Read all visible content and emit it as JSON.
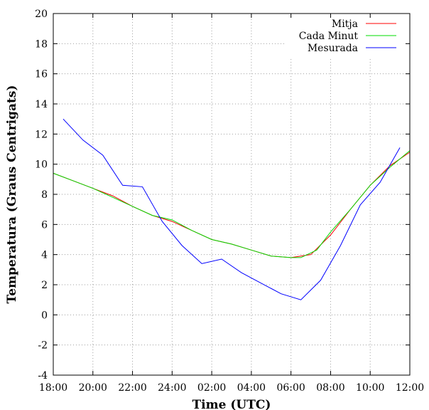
{
  "chart_data": {
    "type": "line",
    "xlabel": "Time (UTC)",
    "ylabel": "Temperatura (Graus Centrigats)",
    "ylim": [
      -4,
      20
    ],
    "yticks": [
      "-4",
      "-2",
      "0",
      "2",
      "4",
      "6",
      "8",
      "10",
      "12",
      "14",
      "16",
      "18",
      "20"
    ],
    "xlim": [
      0,
      18
    ],
    "xticks": [
      {
        "label": "18:00",
        "x": 0
      },
      {
        "label": "20:00",
        "x": 2
      },
      {
        "label": "22:00",
        "x": 4
      },
      {
        "label": "24:00",
        "x": 6
      },
      {
        "label": "02:00",
        "x": 8
      },
      {
        "label": "04:00",
        "x": 10
      },
      {
        "label": "06:00",
        "x": 12
      },
      {
        "label": "08:00",
        "x": 14
      },
      {
        "label": "10:00",
        "x": 16
      },
      {
        "label": "12:00",
        "x": 18
      }
    ],
    "grid": true,
    "legend_position": "top-right",
    "series": [
      {
        "name": "Mitja",
        "color": "#ff0000",
        "points": [
          [
            0,
            9.4
          ],
          [
            1,
            8.9
          ],
          [
            2,
            8.4
          ],
          [
            3,
            7.9
          ],
          [
            4,
            7.2
          ],
          [
            5,
            6.6
          ],
          [
            6,
            6.2
          ],
          [
            7,
            5.6
          ],
          [
            8,
            5.0
          ],
          [
            9,
            4.7
          ],
          [
            10,
            4.3
          ],
          [
            11,
            3.9
          ],
          [
            12,
            3.8
          ],
          [
            13,
            4.0
          ],
          [
            14,
            5.3
          ],
          [
            15,
            7.0
          ],
          [
            16,
            8.6
          ],
          [
            17,
            9.9
          ],
          [
            18,
            10.8
          ]
        ]
      },
      {
        "name": "Cada Minut",
        "color": "#00dd00",
        "points": [
          [
            0,
            9.4
          ],
          [
            1,
            8.9
          ],
          [
            2,
            8.4
          ],
          [
            3,
            7.8
          ],
          [
            4,
            7.2
          ],
          [
            5,
            6.6
          ],
          [
            6,
            6.3
          ],
          [
            7,
            5.6
          ],
          [
            8,
            5.0
          ],
          [
            9,
            4.7
          ],
          [
            10,
            4.3
          ],
          [
            11,
            3.9
          ],
          [
            12,
            3.8
          ],
          [
            12.5,
            3.8
          ],
          [
            13.3,
            4.3
          ],
          [
            14,
            5.5
          ],
          [
            15,
            7.0
          ],
          [
            16,
            8.6
          ],
          [
            17,
            9.8
          ],
          [
            18,
            10.9
          ]
        ]
      },
      {
        "name": "Mesurada",
        "color": "#0000ff",
        "points": [
          [
            0.5,
            13.0
          ],
          [
            1.5,
            11.6
          ],
          [
            2.5,
            10.6
          ],
          [
            3.5,
            8.6
          ],
          [
            4.5,
            8.5
          ],
          [
            5.5,
            6.2
          ],
          [
            6.5,
            4.6
          ],
          [
            7.5,
            3.4
          ],
          [
            8.5,
            3.7
          ],
          [
            9.5,
            2.8
          ],
          [
            10.5,
            2.1
          ],
          [
            11.5,
            1.4
          ],
          [
            12.5,
            1.0
          ],
          [
            13.5,
            2.3
          ],
          [
            14.5,
            4.6
          ],
          [
            15.5,
            7.3
          ],
          [
            16.5,
            8.8
          ],
          [
            17.5,
            11.1
          ]
        ]
      }
    ]
  }
}
